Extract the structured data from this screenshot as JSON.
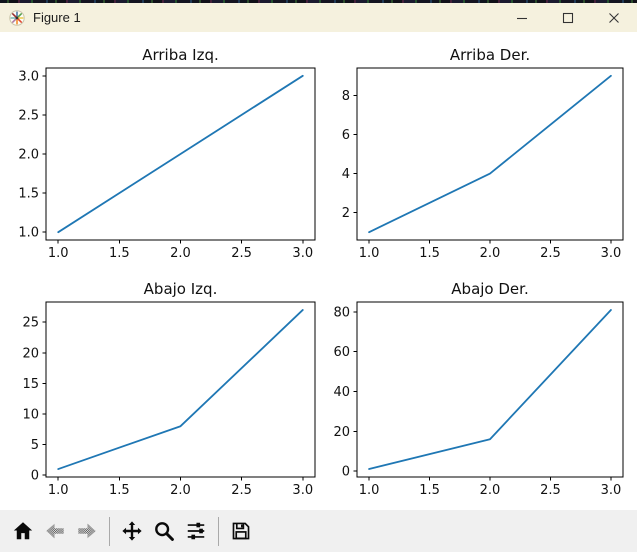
{
  "window": {
    "title": "Figure 1"
  },
  "titlebar": {
    "app_icon": "matplotlib-logo-icon",
    "controls": [
      {
        "name": "minimize",
        "icon": "minimize-icon"
      },
      {
        "name": "maximize",
        "icon": "maximize-icon"
      },
      {
        "name": "close",
        "icon": "close-icon"
      }
    ]
  },
  "toolbar": {
    "items": [
      {
        "type": "button",
        "name": "home",
        "icon": "home-icon",
        "enabled": true
      },
      {
        "type": "button",
        "name": "back",
        "icon": "back-icon",
        "enabled": false
      },
      {
        "type": "button",
        "name": "forward",
        "icon": "forward-icon",
        "enabled": false
      },
      {
        "type": "separator"
      },
      {
        "type": "button",
        "name": "pan",
        "icon": "pan-icon",
        "enabled": true
      },
      {
        "type": "button",
        "name": "zoom",
        "icon": "zoom-icon",
        "enabled": true
      },
      {
        "type": "button",
        "name": "configure-subplots",
        "icon": "sliders-icon",
        "enabled": true
      },
      {
        "type": "separator"
      },
      {
        "type": "button",
        "name": "save",
        "icon": "save-icon",
        "enabled": true
      }
    ]
  },
  "colors": {
    "line": "#1f77b4",
    "titlebar_bg": "#f5f1de",
    "canvas_bg": "#ffffff",
    "toolbar_bg": "#f0f0f0",
    "axes_stroke": "#000000",
    "text": "#111111"
  },
  "figure": {
    "layout": "2x2 subplots"
  },
  "chart_data": [
    {
      "type": "line",
      "title": "Arriba Izq.",
      "x": [
        1,
        2,
        3
      ],
      "y": [
        1,
        2,
        3
      ],
      "xlim": [
        0.9,
        3.1
      ],
      "ylim": [
        0.9,
        3.1
      ],
      "xticks": [
        1.0,
        1.5,
        2.0,
        2.5,
        3.0
      ],
      "xtick_labels": [
        "1.0",
        "1.5",
        "2.0",
        "2.5",
        "3.0"
      ],
      "yticks": [
        1.0,
        1.5,
        2.0,
        2.5,
        3.0
      ],
      "ytick_labels": [
        "1.0",
        "1.5",
        "2.0",
        "2.5",
        "3.0"
      ],
      "xlabel": "",
      "ylabel": "",
      "grid": false,
      "legend": null,
      "line_color": "#1f77b4"
    },
    {
      "type": "line",
      "title": "Arriba Der.",
      "x": [
        1,
        2,
        3
      ],
      "y": [
        1,
        4,
        9
      ],
      "xlim": [
        0.9,
        3.1
      ],
      "ylim": [
        0.6,
        9.4
      ],
      "xticks": [
        1.0,
        1.5,
        2.0,
        2.5,
        3.0
      ],
      "xtick_labels": [
        "1.0",
        "1.5",
        "2.0",
        "2.5",
        "3.0"
      ],
      "yticks": [
        2,
        4,
        6,
        8
      ],
      "ytick_labels": [
        "2",
        "4",
        "6",
        "8"
      ],
      "xlabel": "",
      "ylabel": "",
      "grid": false,
      "legend": null,
      "line_color": "#1f77b4"
    },
    {
      "type": "line",
      "title": "Abajo Izq.",
      "x": [
        1,
        2,
        3
      ],
      "y": [
        1,
        8,
        27
      ],
      "xlim": [
        0.9,
        3.1
      ],
      "ylim": [
        -0.3,
        28.3
      ],
      "xticks": [
        1.0,
        1.5,
        2.0,
        2.5,
        3.0
      ],
      "xtick_labels": [
        "1.0",
        "1.5",
        "2.0",
        "2.5",
        "3.0"
      ],
      "yticks": [
        0,
        5,
        10,
        15,
        20,
        25
      ],
      "ytick_labels": [
        "0",
        "5",
        "10",
        "15",
        "20",
        "25"
      ],
      "xlabel": "",
      "ylabel": "",
      "grid": false,
      "legend": null,
      "line_color": "#1f77b4"
    },
    {
      "type": "line",
      "title": "Abajo Der.",
      "x": [
        1,
        2,
        3
      ],
      "y": [
        1,
        16,
        81
      ],
      "xlim": [
        0.9,
        3.1
      ],
      "ylim": [
        -3.0,
        85.0
      ],
      "xticks": [
        1.0,
        1.5,
        2.0,
        2.5,
        3.0
      ],
      "xtick_labels": [
        "1.0",
        "1.5",
        "2.0",
        "2.5",
        "3.0"
      ],
      "yticks": [
        0,
        20,
        40,
        60,
        80
      ],
      "ytick_labels": [
        "0",
        "20",
        "40",
        "60",
        "80"
      ],
      "xlabel": "",
      "ylabel": "",
      "grid": false,
      "legend": null,
      "line_color": "#1f77b4"
    }
  ]
}
